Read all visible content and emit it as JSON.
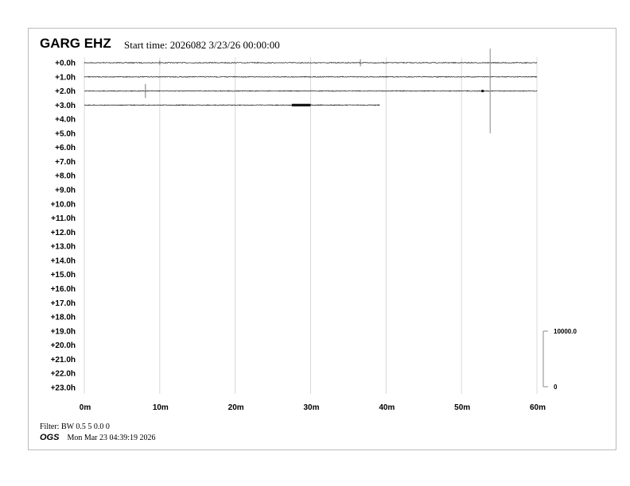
{
  "header": {
    "station": "GARG EHZ",
    "start_time": "Start time: 2026082  3/23/26 00:00:00"
  },
  "footer": {
    "filter": "Filter: BW 0.5 5 0.0 0",
    "org": "OGS",
    "generated": "Mon Mar 23 04:39:19 2026"
  },
  "chart_data": {
    "type": "line",
    "title": "GARG EHZ",
    "row_labels": [
      "+0.0h",
      "+1.0h",
      "+2.0h",
      "+3.0h",
      "+4.0h",
      "+5.0h",
      "+6.0h",
      "+7.0h",
      "+8.0h",
      "+9.0h",
      "+10.0h",
      "+11.0h",
      "+12.0h",
      "+13.0h",
      "+14.0h",
      "+15.0h",
      "+16.0h",
      "+17.0h",
      "+18.0h",
      "+19.0h",
      "+20.0h",
      "+21.0h",
      "+22.0h",
      "+23.0h"
    ],
    "x_tick_labels": [
      "0m",
      "10m",
      "20m",
      "30m",
      "40m",
      "50m",
      "60m"
    ],
    "xlim": [
      0,
      60
    ],
    "grid": true,
    "scale": {
      "top_label": "10000.0",
      "bottom_label": "0"
    },
    "traces": [
      {
        "row": 0,
        "end_min": 60,
        "events": [
          {
            "min": 10.0,
            "amp": 0.3
          },
          {
            "min": 36.6,
            "amp": 0.5
          }
        ]
      },
      {
        "row": 1,
        "end_min": 60,
        "events": []
      },
      {
        "row": 2,
        "end_min": 60,
        "events": [
          {
            "min": 8.1,
            "amp": 1.0
          },
          {
            "min": 52.8,
            "amp": 0.2
          },
          {
            "min": 53.8,
            "amp": 6.0
          }
        ]
      },
      {
        "row": 3,
        "end_min": 39.2,
        "events": [],
        "bursts": [
          {
            "start_min": 27.5,
            "end_min": 30.0
          }
        ]
      }
    ]
  }
}
